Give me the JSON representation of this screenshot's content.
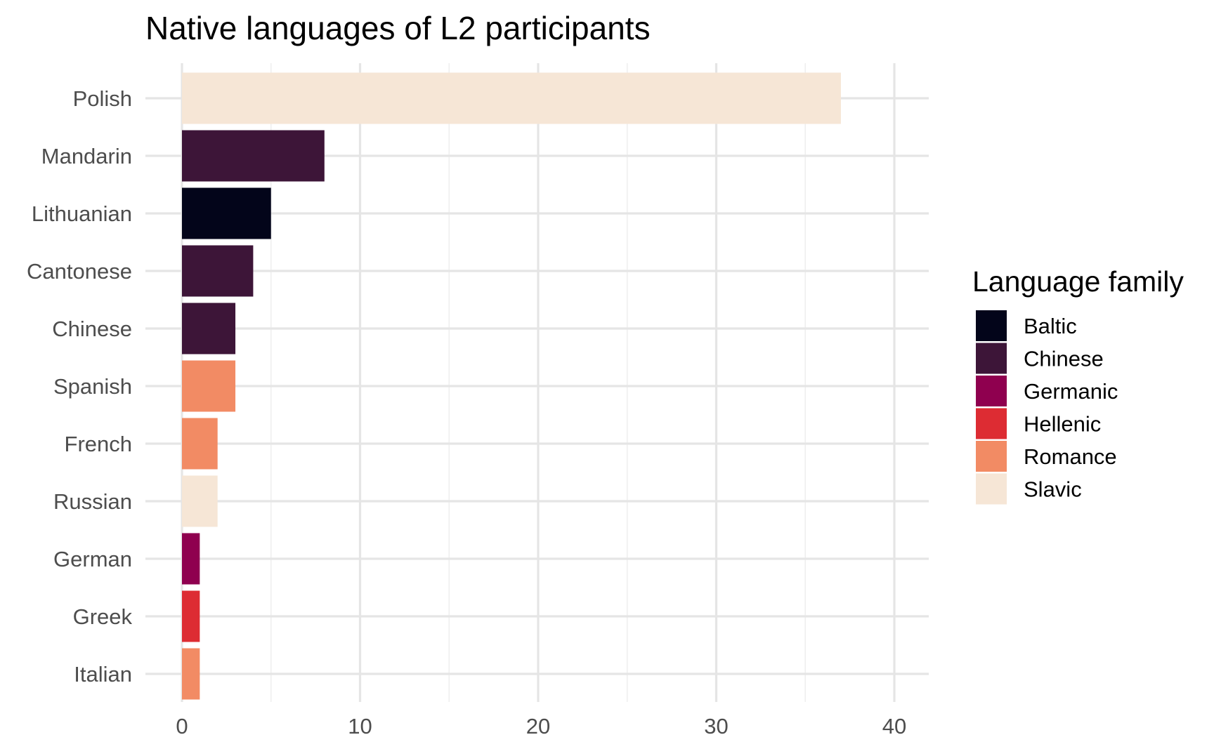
{
  "chart_data": {
    "type": "bar",
    "orientation": "horizontal",
    "title": "Native languages of L2 participants",
    "xlabel": "",
    "ylabel": "",
    "xlim": [
      0,
      42
    ],
    "x_ticks": [
      0,
      10,
      20,
      30,
      40
    ],
    "x_tick_labels": [
      "0",
      "10",
      "20",
      "30",
      "40"
    ],
    "grid": true,
    "legend": {
      "title": "Language family",
      "placement": "right",
      "entries": [
        {
          "label": "Baltic",
          "color": "#03051a"
        },
        {
          "label": "Chinese",
          "color": "#3d1538"
        },
        {
          "label": "Germanic",
          "color": "#8f004f"
        },
        {
          "label": "Hellenic",
          "color": "#dd2c33"
        },
        {
          "label": "Romance",
          "color": "#f28b64"
        },
        {
          "label": "Slavic",
          "color": "#f6e6d6"
        }
      ]
    },
    "categories": [
      "Polish",
      "Mandarin",
      "Lithuanian",
      "Cantonese",
      "Chinese",
      "Spanish",
      "French",
      "Russian",
      "German",
      "Greek",
      "Italian"
    ],
    "values": [
      37,
      8,
      5,
      4,
      3,
      3,
      2,
      2,
      1,
      1,
      1
    ],
    "family": [
      "Slavic",
      "Chinese",
      "Baltic",
      "Chinese",
      "Chinese",
      "Romance",
      "Romance",
      "Slavic",
      "Germanic",
      "Hellenic",
      "Romance"
    ]
  }
}
